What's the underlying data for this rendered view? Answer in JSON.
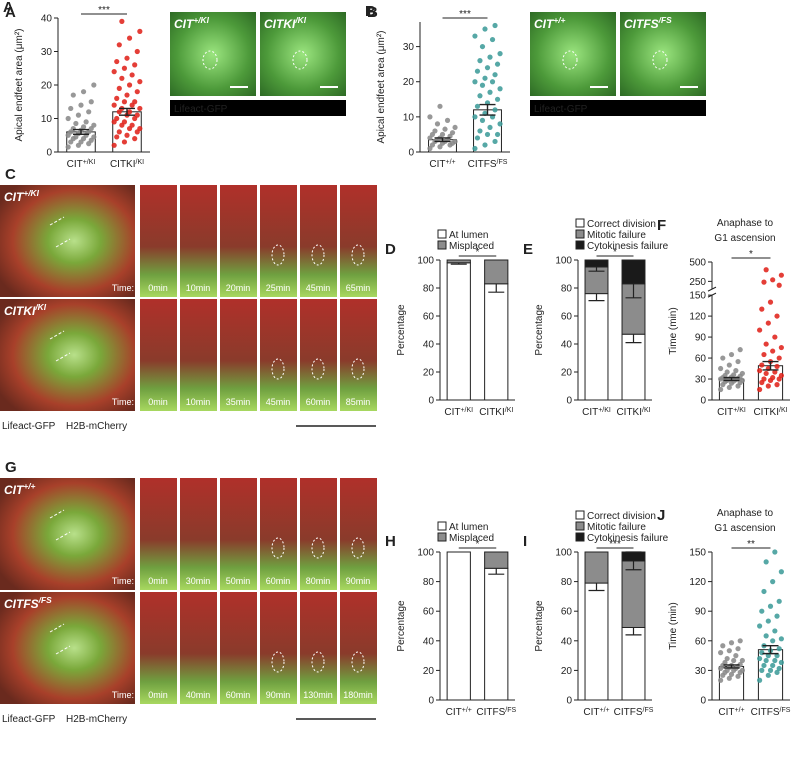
{
  "chart_data": [
    {
      "type": "dotbar",
      "panel": "A",
      "ylabel": "Apical endfeet area (μm²)",
      "categories": [
        "CIT+/KI",
        "CITKI/KI"
      ],
      "values": [
        6,
        12
      ],
      "errors": [
        0.7,
        1
      ],
      "colors": [
        "#8a8a8a",
        "#e0231b"
      ],
      "significance": "***",
      "points": [
        [
          1.5,
          2,
          2.5,
          3,
          3,
          3.5,
          4,
          4,
          4.5,
          4.5,
          5,
          5,
          5.5,
          6,
          6,
          6.5,
          7,
          7,
          7.5,
          8,
          8.5,
          9,
          10,
          11,
          12,
          13,
          14,
          15,
          17,
          18,
          20
        ],
        [
          2,
          3,
          4,
          4.5,
          5,
          6,
          6,
          7,
          7,
          8,
          8,
          9,
          9,
          10,
          10,
          11,
          11,
          12,
          12,
          13,
          13,
          14,
          14,
          15,
          15,
          16,
          17,
          18,
          19,
          20,
          21,
          22,
          23,
          24,
          25,
          26,
          27,
          28,
          30,
          32,
          34,
          36,
          39
        ]
      ],
      "ylim": [
        0,
        40
      ],
      "yticks": [
        0,
        10,
        20,
        30,
        40
      ]
    },
    {
      "type": "dotbar",
      "panel": "B",
      "ylabel": "Apical endfeet area (μm²)",
      "categories": [
        "CIT+/+",
        "CITFS/FS"
      ],
      "values": [
        3.5,
        12
      ],
      "errors": [
        0.5,
        1.5
      ],
      "colors": [
        "#8a8a8a",
        "#3f9c9a"
      ],
      "significance": "***",
      "points": [
        [
          1,
          1.5,
          2,
          2,
          2.5,
          2.5,
          3,
          3,
          3,
          3.5,
          3.5,
          4,
          4,
          4.5,
          5,
          5,
          5.5,
          6,
          6.5,
          7,
          8,
          9,
          10,
          13
        ],
        [
          1,
          2,
          3,
          4,
          5,
          5,
          6,
          7,
          8,
          9,
          10,
          10,
          11,
          12,
          13,
          14,
          15,
          16,
          17,
          18,
          19,
          20,
          20,
          21,
          22,
          23,
          24,
          25,
          26,
          27,
          28,
          30,
          32,
          33,
          35,
          36
        ]
      ],
      "ylim": [
        0,
        37
      ],
      "yticks": [
        0,
        10,
        20,
        30
      ]
    },
    {
      "type": "stacked_bar",
      "panel": "D",
      "ylabel": "Percentage",
      "categories": [
        "CIT+/KI",
        "CITKI/KI"
      ],
      "significance": "*",
      "series": [
        {
          "name": "At lumen",
          "color": "#ffffff",
          "values": [
            98,
            83
          ],
          "errors": [
            1,
            6
          ]
        },
        {
          "name": "Misplaced",
          "color": "#8c8c8c",
          "values": [
            2,
            17
          ],
          "errors": [
            null,
            null
          ]
        }
      ],
      "ylim": [
        0,
        100
      ],
      "yticks": [
        0,
        20,
        40,
        60,
        80,
        100
      ]
    },
    {
      "type": "stacked_bar",
      "panel": "E",
      "ylabel": "Percentage",
      "categories": [
        "CIT+/KI",
        "CITKI/KI"
      ],
      "significance": "*",
      "series": [
        {
          "name": "Correct division",
          "color": "#ffffff",
          "values": [
            76,
            47
          ],
          "errors": [
            5,
            6
          ]
        },
        {
          "name": "Mitotic failure",
          "color": "#8c8c8c",
          "values": [
            19,
            36
          ],
          "errors": [
            3,
            10
          ]
        },
        {
          "name": "Cytokinesis failure",
          "color": "#1a1a1a",
          "values": [
            5,
            17
          ],
          "errors": [
            null,
            null
          ]
        }
      ],
      "ylim": [
        0,
        100
      ],
      "yticks": [
        0,
        20,
        40,
        60,
        80,
        100
      ]
    },
    {
      "type": "dotbar",
      "panel": "F",
      "title": [
        "Anaphase to",
        "G1 ascension"
      ],
      "ylabel": "Time (min)",
      "categories": [
        "CIT+/KI",
        "CITKI/KI"
      ],
      "values": [
        30,
        49
      ],
      "errors": [
        2,
        6
      ],
      "colors": [
        "#8a8a8a",
        "#e0231b"
      ],
      "significance": "*",
      "points": [
        [
          15,
          18,
          20,
          22,
          24,
          25,
          26,
          27,
          28,
          28,
          29,
          30,
          30,
          31,
          32,
          33,
          34,
          35,
          36,
          38,
          40,
          42,
          45,
          50,
          55,
          60,
          65,
          72
        ],
        [
          15,
          20,
          22,
          25,
          28,
          30,
          30,
          32,
          35,
          38,
          40,
          42,
          45,
          48,
          50,
          55,
          60,
          65,
          70,
          75,
          80,
          90,
          100,
          110,
          120,
          130,
          140,
          200,
          240,
          270,
          330,
          400
        ]
      ],
      "ylim": [
        0,
        500
      ],
      "ybreak": 150,
      "yticks": [
        0,
        30,
        60,
        90,
        120,
        150,
        250,
        500
      ]
    },
    {
      "type": "stacked_bar",
      "panel": "H",
      "ylabel": "Percentage",
      "categories": [
        "CIT+/+",
        "CITFS/FS"
      ],
      "significance": "*",
      "series": [
        {
          "name": "At lumen",
          "color": "#ffffff",
          "values": [
            100,
            89
          ],
          "errors": [
            null,
            4
          ]
        },
        {
          "name": "Misplaced",
          "color": "#8c8c8c",
          "values": [
            0,
            11
          ],
          "errors": [
            null,
            null
          ]
        }
      ],
      "ylim": [
        0,
        100
      ],
      "yticks": [
        0,
        20,
        40,
        60,
        80,
        100
      ]
    },
    {
      "type": "stacked_bar",
      "panel": "I",
      "ylabel": "Percentage",
      "categories": [
        "CIT+/+",
        "CITFS/FS"
      ],
      "significance": "***",
      "series": [
        {
          "name": "Correct division",
          "color": "#ffffff",
          "values": [
            79,
            49
          ],
          "errors": [
            5,
            5
          ]
        },
        {
          "name": "Mitotic failure",
          "color": "#8c8c8c",
          "values": [
            21,
            45
          ],
          "errors": [
            null,
            6
          ]
        },
        {
          "name": "Cytokinesis failure",
          "color": "#1a1a1a",
          "values": [
            0,
            6
          ],
          "errors": [
            null,
            null
          ]
        }
      ],
      "ylim": [
        0,
        100
      ],
      "yticks": [
        0,
        20,
        40,
        60,
        80,
        100
      ]
    },
    {
      "type": "dotbar",
      "panel": "J",
      "title": [
        "Anaphase to",
        "G1 ascension"
      ],
      "ylabel": "Time (min)",
      "categories": [
        "CIT+/+",
        "CITFS/FS"
      ],
      "values": [
        34,
        51
      ],
      "errors": [
        1.5,
        4
      ],
      "colors": [
        "#8a8a8a",
        "#3f9c9a"
      ],
      "significance": "**",
      "points": [
        [
          20,
          22,
          24,
          25,
          26,
          28,
          28,
          30,
          30,
          30,
          32,
          32,
          33,
          34,
          35,
          35,
          36,
          38,
          40,
          40,
          42,
          45,
          48,
          50,
          52,
          55,
          58,
          60
        ],
        [
          20,
          25,
          28,
          30,
          30,
          32,
          35,
          35,
          38,
          40,
          40,
          42,
          45,
          45,
          48,
          50,
          52,
          55,
          60,
          62,
          65,
          70,
          75,
          80,
          85,
          90,
          95,
          100,
          110,
          120,
          130,
          140,
          150
        ]
      ],
      "ylim": [
        0,
        150
      ],
      "yticks": [
        0,
        30,
        60,
        90,
        120,
        150
      ]
    }
  ],
  "image_panels": [
    {
      "panel": "A",
      "images": [
        "CIT+/KI",
        "CITKI/KI"
      ],
      "channels": [
        {
          "name": "Lifeact-GFP",
          "color": "#6fd06f"
        }
      ]
    },
    {
      "panel": "B",
      "images": [
        "CIT+/+",
        "CITFS/FS"
      ],
      "channels": [
        {
          "name": "Lifeact-GFP",
          "color": "#6fd06f"
        }
      ]
    },
    {
      "panel": "C",
      "time_label": "Time:",
      "rows": [
        {
          "genotype": "CIT+/KI",
          "times": [
            "0min",
            "10min",
            "20min",
            "25min",
            "45min",
            "65min"
          ]
        },
        {
          "genotype": "CITKI/KI",
          "times": [
            "0min",
            "10min",
            "35min",
            "45min",
            "60min",
            "85min"
          ]
        }
      ],
      "channels": [
        {
          "name": "Lifeact-GFP",
          "color": "#3fae3f"
        },
        {
          "name": "H2B-mCherry",
          "color": "#e0231b"
        }
      ]
    },
    {
      "panel": "G",
      "time_label": "Time:",
      "rows": [
        {
          "genotype": "CIT+/+",
          "times": [
            "0min",
            "30min",
            "50min",
            "60min",
            "80min",
            "90min"
          ]
        },
        {
          "genotype": "CITFS/FS",
          "times": [
            "0min",
            "40min",
            "60min",
            "90min",
            "130min",
            "180min"
          ]
        }
      ],
      "channels": [
        {
          "name": "Lifeact-GFP",
          "color": "#3fae3f"
        },
        {
          "name": "H2B-mCherry",
          "color": "#e0231b"
        }
      ]
    }
  ]
}
